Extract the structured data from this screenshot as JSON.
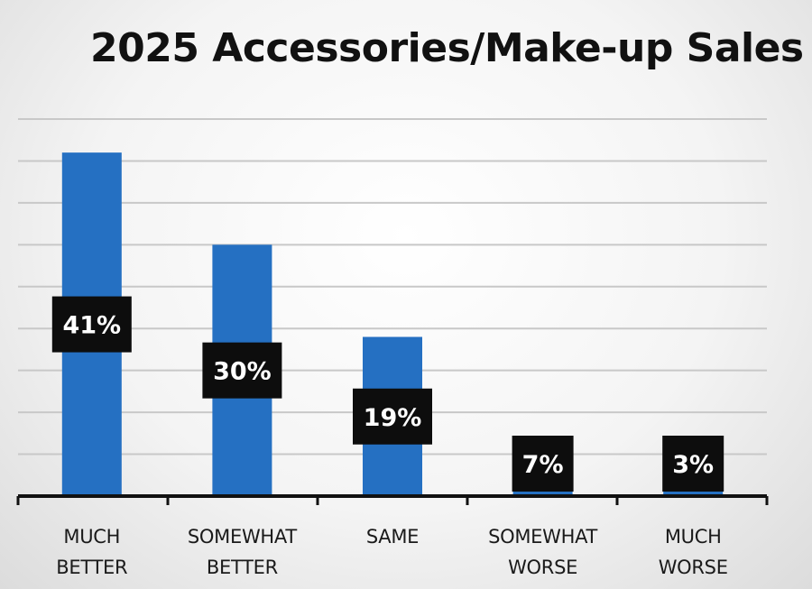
{
  "colors": {
    "bar": "#2570c2",
    "label_box": "#0d0d0d",
    "label_text": "#ffffff",
    "grid": "#c8c8c8",
    "axis": "#111111"
  },
  "chart_data": {
    "type": "bar",
    "title": "2025 Accessories/Make-up Sales",
    "categories": [
      "MUCH\nBETTER",
      "SOMEWHAT\nBETTER",
      "SAME",
      "SOMEWHAT\nWORSE",
      "MUCH\nWORSE"
    ],
    "values": [
      41,
      30,
      19,
      7,
      3
    ],
    "data_labels": [
      "41%",
      "30%",
      "19%",
      "7%",
      "3%"
    ],
    "xlabel": "",
    "ylabel": "",
    "ylim": [
      0,
      45
    ],
    "grid": true,
    "legend": "none"
  }
}
